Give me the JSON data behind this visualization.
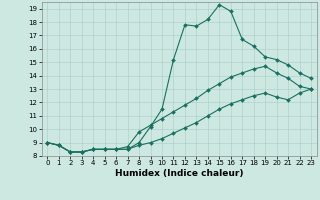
{
  "xlabel": "Humidex (Indice chaleur)",
  "bg_color": "#cce8e0",
  "line_color": "#1a7060",
  "grid_color_major": "#aacccc",
  "grid_color_minor": "#aacccc",
  "xlim": [
    -0.5,
    23.5
  ],
  "ylim": [
    8,
    19.5
  ],
  "xticks": [
    0,
    1,
    2,
    3,
    4,
    5,
    6,
    7,
    8,
    9,
    10,
    11,
    12,
    13,
    14,
    15,
    16,
    17,
    18,
    19,
    20,
    21,
    22,
    23
  ],
  "yticks": [
    8,
    9,
    10,
    11,
    12,
    13,
    14,
    15,
    16,
    17,
    18,
    19
  ],
  "line1_x": [
    0,
    1,
    2,
    3,
    4,
    5,
    6,
    7,
    8,
    9,
    10,
    11,
    12,
    13,
    14,
    15,
    16,
    17,
    18,
    19,
    20,
    21,
    22,
    23
  ],
  "line1_y": [
    9.0,
    8.8,
    8.3,
    8.3,
    8.5,
    8.5,
    8.5,
    8.5,
    9.0,
    10.2,
    11.5,
    15.2,
    17.8,
    17.7,
    18.2,
    19.3,
    18.8,
    16.7,
    16.2,
    15.4,
    15.2,
    14.8,
    14.2,
    13.8
  ],
  "line2_x": [
    0,
    1,
    2,
    3,
    4,
    5,
    6,
    7,
    8,
    9,
    10,
    11,
    12,
    13,
    14,
    15,
    16,
    17,
    18,
    19,
    20,
    21,
    22,
    23
  ],
  "line2_y": [
    9.0,
    8.8,
    8.3,
    8.3,
    8.5,
    8.5,
    8.5,
    8.7,
    9.8,
    10.3,
    10.8,
    11.3,
    11.8,
    12.3,
    12.9,
    13.4,
    13.9,
    14.2,
    14.5,
    14.7,
    14.2,
    13.8,
    13.2,
    13.0
  ],
  "line3_x": [
    0,
    1,
    2,
    3,
    4,
    5,
    6,
    7,
    8,
    9,
    10,
    11,
    12,
    13,
    14,
    15,
    16,
    17,
    18,
    19,
    20,
    21,
    22,
    23
  ],
  "line3_y": [
    9.0,
    8.8,
    8.3,
    8.3,
    8.5,
    8.5,
    8.5,
    8.5,
    8.8,
    9.0,
    9.3,
    9.7,
    10.1,
    10.5,
    11.0,
    11.5,
    11.9,
    12.2,
    12.5,
    12.7,
    12.4,
    12.2,
    12.7,
    13.0
  ]
}
